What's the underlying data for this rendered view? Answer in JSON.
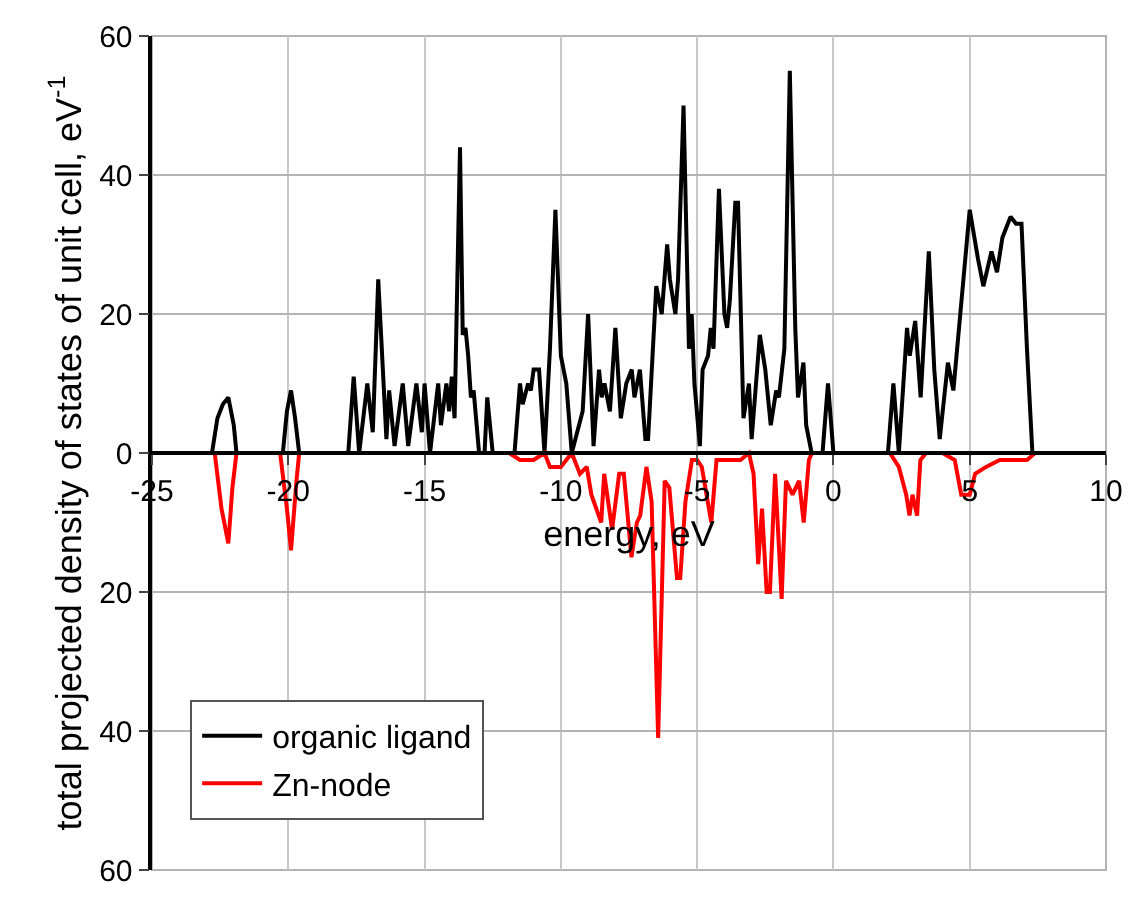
{
  "chart_data": {
    "type": "line",
    "xlabel": "energy, eV",
    "ylabel": "total projected density of states of unit cell, eV$^{-1}$",
    "xlim": [
      -25,
      10
    ],
    "xticks": [
      -25,
      -20,
      -15,
      -10,
      -5,
      0,
      5,
      10
    ],
    "ylim": [
      -60,
      60
    ],
    "yticks": [
      {
        "value": -60,
        "label": "60"
      },
      {
        "value": -40,
        "label": "40"
      },
      {
        "value": -20,
        "label": "20"
      },
      0,
      20,
      40,
      60
    ],
    "grid": true,
    "legend": "bottom left",
    "line_style": "solid",
    "marker": "none",
    "series": [
      {
        "name": "organic ligand",
        "color": "#000000",
        "x": [
          -22.8,
          -22.6,
          -22.4,
          -22.2,
          -22.0,
          -21.9,
          -20.2,
          -20.05,
          -19.9,
          -19.75,
          -19.6,
          -17.8,
          -17.6,
          -17.4,
          -17.1,
          -16.9,
          -16.7,
          -16.4,
          -16.3,
          -16.1,
          -15.8,
          -15.6,
          -15.3,
          -15.1,
          -15.0,
          -14.8,
          -14.5,
          -14.4,
          -14.2,
          -14.1,
          -14.0,
          -13.9,
          -13.7,
          -13.6,
          -13.5,
          -13.4,
          -13.3,
          -13.2,
          -13.0,
          -12.8,
          -12.7,
          -12.5,
          -11.7,
          -11.5,
          -11.4,
          -11.2,
          -11.1,
          -11.0,
          -10.8,
          -10.6,
          -10.4,
          -10.2,
          -10.0,
          -9.8,
          -9.6,
          -9.2,
          -9.0,
          -8.8,
          -8.6,
          -8.5,
          -8.4,
          -8.2,
          -8.0,
          -7.8,
          -7.6,
          -7.4,
          -7.3,
          -7.1,
          -6.9,
          -6.8,
          -6.5,
          -6.3,
          -6.1,
          -6.0,
          -5.8,
          -5.7,
          -5.5,
          -5.3,
          -5.2,
          -5.1,
          -4.9,
          -4.8,
          -4.6,
          -4.5,
          -4.4,
          -4.2,
          -4.0,
          -3.9,
          -3.8,
          -3.6,
          -3.5,
          -3.3,
          -3.1,
          -3.0,
          -2.7,
          -2.5,
          -2.3,
          -2.1,
          -2.0,
          -1.8,
          -1.6,
          -1.4,
          -1.3,
          -1.1,
          -1.0,
          -0.8,
          -0.4,
          -0.2,
          0.0,
          2.0,
          2.2,
          2.4,
          2.7,
          2.8,
          3.0,
          3.2,
          3.5,
          3.7,
          3.9,
          4.2,
          4.4,
          4.7,
          5.0,
          5.3,
          5.5,
          5.8,
          6.0,
          6.2,
          6.5,
          6.7,
          6.9,
          7.1,
          7.3,
          7.5
        ],
        "values": [
          0,
          5,
          7,
          8,
          4,
          0,
          0,
          6,
          9,
          5,
          0,
          0,
          11,
          0,
          10,
          3,
          25,
          2,
          9,
          1,
          10,
          1,
          10,
          3,
          10,
          0,
          10,
          4,
          10,
          6,
          11,
          5,
          44,
          17,
          18,
          14,
          8,
          9,
          0,
          0,
          8,
          0,
          0,
          10,
          7,
          10,
          9,
          12,
          12,
          0,
          15,
          35,
          14,
          10,
          0,
          6,
          20,
          1,
          12,
          8,
          10,
          6,
          18,
          5,
          10,
          12,
          8,
          12,
          2,
          2,
          24,
          20,
          30,
          25,
          20,
          25,
          50,
          15,
          20,
          10,
          1,
          12,
          14,
          18,
          15,
          38,
          20,
          18,
          22,
          36,
          36,
          5,
          10,
          2,
          17,
          12,
          4,
          9,
          8,
          15,
          55,
          18,
          8,
          13,
          4,
          0,
          0,
          10,
          0,
          0,
          10,
          0,
          18,
          14,
          19,
          8,
          29,
          12,
          2,
          13,
          9,
          22,
          35,
          28,
          24,
          29,
          26,
          31,
          34,
          33,
          33,
          15,
          0,
          0
        ]
      },
      {
        "name": "Zn-node",
        "color": "#ff0000",
        "x": [
          -22.7,
          -22.45,
          -22.2,
          -22.05,
          -21.9,
          -20.3,
          -20.05,
          -19.9,
          -19.7,
          -19.6,
          -11.9,
          -11.5,
          -11.0,
          -10.8,
          -10.6,
          -10.4,
          -10.0,
          -9.8,
          -9.6,
          -9.3,
          -9.05,
          -8.88,
          -8.52,
          -8.41,
          -8.12,
          -7.86,
          -7.69,
          -7.41,
          -7.21,
          -7.09,
          -6.86,
          -6.67,
          -6.43,
          -6.19,
          -6.02,
          -5.74,
          -5.62,
          -5.43,
          -5.19,
          -5.0,
          -4.83,
          -4.48,
          -4.29,
          -3.88,
          -3.41,
          -3.1,
          -2.93,
          -2.76,
          -2.62,
          -2.45,
          -2.33,
          -2.14,
          -1.9,
          -1.74,
          -1.5,
          -1.26,
          -1.09,
          -0.9,
          -0.79,
          2.07,
          2.4,
          2.67,
          2.79,
          2.9,
          3.07,
          3.19,
          3.4,
          4.0,
          4.45,
          4.69,
          5.0,
          5.2,
          5.6,
          6.1,
          6.8,
          7.1,
          7.4
        ],
        "values": [
          0,
          -8,
          -13,
          -5,
          0,
          0,
          -8,
          -14,
          -4,
          0,
          0,
          -1,
          -1,
          -0.5,
          0,
          -2,
          -2,
          -1,
          0,
          -3,
          -2,
          -6,
          -10,
          -3,
          -11,
          -3,
          -3,
          -15,
          -10,
          -9,
          -2,
          -7,
          -41,
          -4,
          -5,
          -18,
          -18,
          -7,
          -1,
          -1,
          -2,
          -10,
          -1,
          -1,
          -1,
          0,
          -3,
          -16,
          -8,
          -20,
          -20,
          -3,
          -21,
          -4,
          -6,
          -4,
          -10,
          -1,
          0,
          0,
          -2,
          -6,
          -9,
          -6,
          -9,
          -1,
          0,
          0,
          -1,
          -6,
          -6,
          -3,
          -2,
          -1,
          -1,
          -1,
          0
        ]
      }
    ]
  }
}
